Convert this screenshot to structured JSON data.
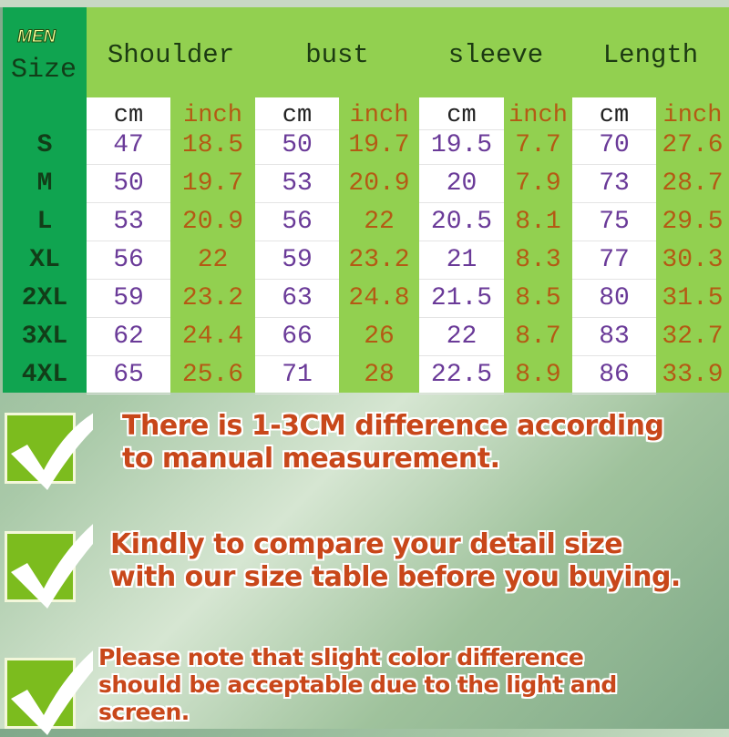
{
  "table": {
    "gender_label": "MEN",
    "size_header": "Size",
    "measurements": [
      "Shoulder",
      "bust",
      "sleeve",
      "Length"
    ],
    "units": [
      "cm",
      "inch"
    ],
    "rows": [
      {
        "size": "S",
        "values": [
          "47",
          "18.5",
          "50",
          "19.7",
          "19.5",
          "7.7",
          "70",
          "27.6"
        ]
      },
      {
        "size": "M",
        "values": [
          "50",
          "19.7",
          "53",
          "20.9",
          "20",
          "7.9",
          "73",
          "28.7"
        ]
      },
      {
        "size": "L",
        "values": [
          "53",
          "20.9",
          "56",
          "22",
          "20.5",
          "8.1",
          "75",
          "29.5"
        ]
      },
      {
        "size": "XL",
        "values": [
          "56",
          "22",
          "59",
          "23.2",
          "21",
          "8.3",
          "77",
          "30.3"
        ]
      },
      {
        "size": "2XL",
        "values": [
          "59",
          "23.2",
          "63",
          "24.8",
          "21.5",
          "8.5",
          "80",
          "31.5"
        ]
      },
      {
        "size": "3XL",
        "values": [
          "62",
          "24.4",
          "66",
          "26",
          "22",
          "8.7",
          "83",
          "32.7"
        ]
      },
      {
        "size": "4XL",
        "values": [
          "65",
          "25.6",
          "71",
          "28",
          "22.5",
          "8.9",
          "86",
          "33.9"
        ]
      }
    ]
  },
  "notes": [
    {
      "icon": "checkmark-icon",
      "lines": [
        "There is 1-3CM difference according",
        "to manual measurement."
      ]
    },
    {
      "icon": "checkmark-icon",
      "lines": [
        "Kindly to compare your detail size",
        "with our size table before you buying."
      ]
    },
    {
      "icon": "checkmark-icon",
      "lines": [
        "Please note that slight color difference",
        "should be acceptable due to  the light and",
        "screen."
      ]
    }
  ],
  "colors": {
    "size_column": "#10a450",
    "header": "#92d050",
    "cm_text": "#6a3a98",
    "inch_text": "#b45a14",
    "note_text": "#c8471a"
  }
}
